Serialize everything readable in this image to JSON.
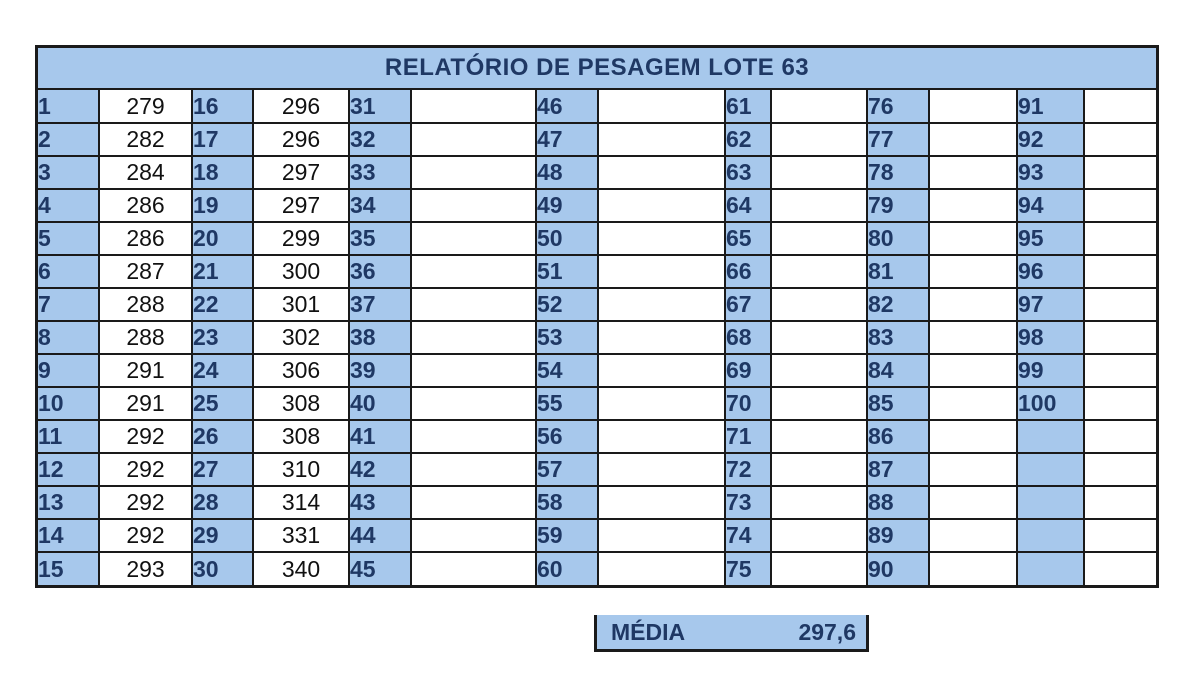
{
  "title": "RELATÓRIO DE PESAGEM LOTE 63",
  "columns": [
    {
      "nums": [
        "1",
        "2",
        "3",
        "4",
        "5",
        "6",
        "7",
        "8",
        "9",
        "10",
        "11",
        "12",
        "13",
        "14",
        "15"
      ],
      "vals": [
        "279",
        "282",
        "284",
        "286",
        "286",
        "287",
        "288",
        "288",
        "291",
        "291",
        "292",
        "292",
        "292",
        "292",
        "293"
      ]
    },
    {
      "nums": [
        "16",
        "17",
        "18",
        "19",
        "20",
        "21",
        "22",
        "23",
        "24",
        "25",
        "26",
        "27",
        "28",
        "29",
        "30"
      ],
      "vals": [
        "296",
        "296",
        "297",
        "297",
        "299",
        "300",
        "301",
        "302",
        "306",
        "308",
        "308",
        "310",
        "314",
        "331",
        "340"
      ]
    },
    {
      "nums": [
        "31",
        "32",
        "33",
        "34",
        "35",
        "36",
        "37",
        "38",
        "39",
        "40",
        "41",
        "42",
        "43",
        "44",
        "45"
      ],
      "vals": [
        "",
        "",
        "",
        "",
        "",
        "",
        "",
        "",
        "",
        "",
        "",
        "",
        "",
        "",
        ""
      ]
    },
    {
      "nums": [
        "46",
        "47",
        "48",
        "49",
        "50",
        "51",
        "52",
        "53",
        "54",
        "55",
        "56",
        "57",
        "58",
        "59",
        "60"
      ],
      "vals": [
        "",
        "",
        "",
        "",
        "",
        "",
        "",
        "",
        "",
        "",
        "",
        "",
        "",
        "",
        ""
      ]
    },
    {
      "nums": [
        "61",
        "62",
        "63",
        "64",
        "65",
        "66",
        "67",
        "68",
        "69",
        "70",
        "71",
        "72",
        "73",
        "74",
        "75"
      ],
      "vals": [
        "",
        "",
        "",
        "",
        "",
        "",
        "",
        "",
        "",
        "",
        "",
        "",
        "",
        "",
        ""
      ]
    },
    {
      "nums": [
        "76",
        "77",
        "78",
        "79",
        "80",
        "81",
        "82",
        "83",
        "84",
        "85",
        "86",
        "87",
        "88",
        "89",
        "90"
      ],
      "vals": [
        "",
        "",
        "",
        "",
        "",
        "",
        "",
        "",
        "",
        "",
        "",
        "",
        "",
        "",
        ""
      ]
    },
    {
      "nums": [
        "91",
        "92",
        "93",
        "94",
        "95",
        "96",
        "97",
        "98",
        "99",
        "100",
        "",
        "",
        "",
        "",
        ""
      ],
      "vals": [
        "",
        "",
        "",
        "",
        "",
        "",
        "",
        "",
        "",
        "",
        "",
        "",
        "",
        "",
        ""
      ]
    }
  ],
  "media": {
    "label": "MÉDIA",
    "value": "297,6"
  }
}
